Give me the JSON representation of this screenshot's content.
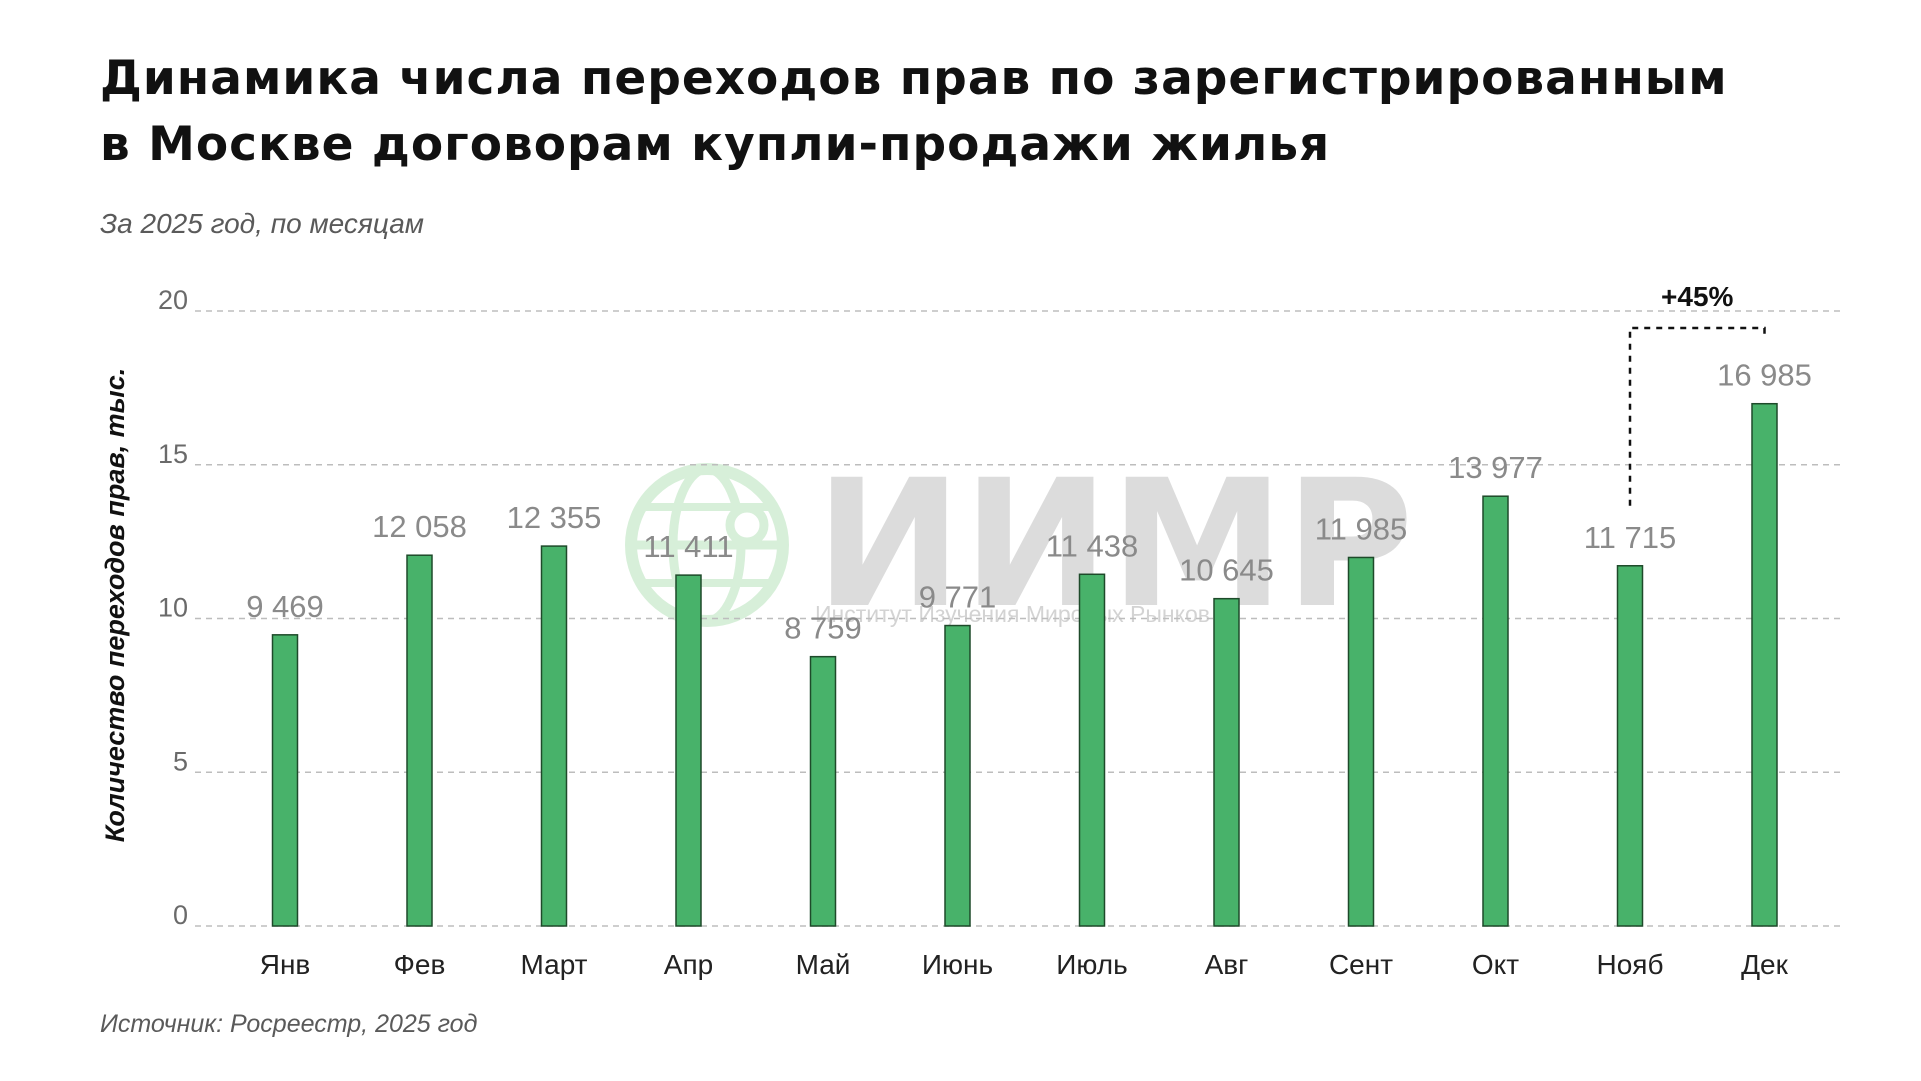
{
  "title_lines": [
    "Динамика числа переходов прав по зарегистрированным",
    "в Москве договорам купли-продажи жилья"
  ],
  "subtitle": "За 2025 год, по месяцам",
  "source": "Источник: Росреестр, 2025 год",
  "watermark": {
    "logo_text": "ИИМР",
    "caption": "Институт Изучения Мировых Рынков",
    "logo_icon": "globe-network-icon",
    "logo_color": "#d7efd9"
  },
  "colors": {
    "bar_fill": "#48b26a",
    "bar_stroke": "#1e4a2a",
    "grid": "#bdbdbd"
  },
  "chart_data": {
    "type": "bar",
    "title": "Динамика числа переходов прав по зарегистрированным в Москве договорам купли-продажи жилья",
    "subtitle": "За 2025 год, по месяцам",
    "xlabel": "",
    "ylabel": "Количество переходов прав, тыс.",
    "categories": [
      "Янв",
      "Фев",
      "Март",
      "Апр",
      "Май",
      "Июнь",
      "Июль",
      "Авг",
      "Сент",
      "Окт",
      "Нояб",
      "Дек"
    ],
    "values": [
      9.469,
      12.058,
      12.355,
      11.411,
      8.759,
      9.771,
      11.438,
      10.645,
      11.985,
      13.977,
      11.715,
      16.985
    ],
    "data_labels": [
      "9 469",
      "12 058",
      "12 355",
      "11 411",
      "8 759",
      "9 771",
      "11 438",
      "10 645",
      "11 985",
      "13 977",
      "11 715",
      "16 985"
    ],
    "ylim": [
      0,
      20
    ],
    "yticks": [
      0,
      5,
      10,
      15,
      20
    ],
    "grid": true,
    "grid_style": "dashed",
    "legend": "none",
    "annotation": {
      "text": "+45%",
      "from": "Нояб",
      "to": "Дек"
    }
  }
}
